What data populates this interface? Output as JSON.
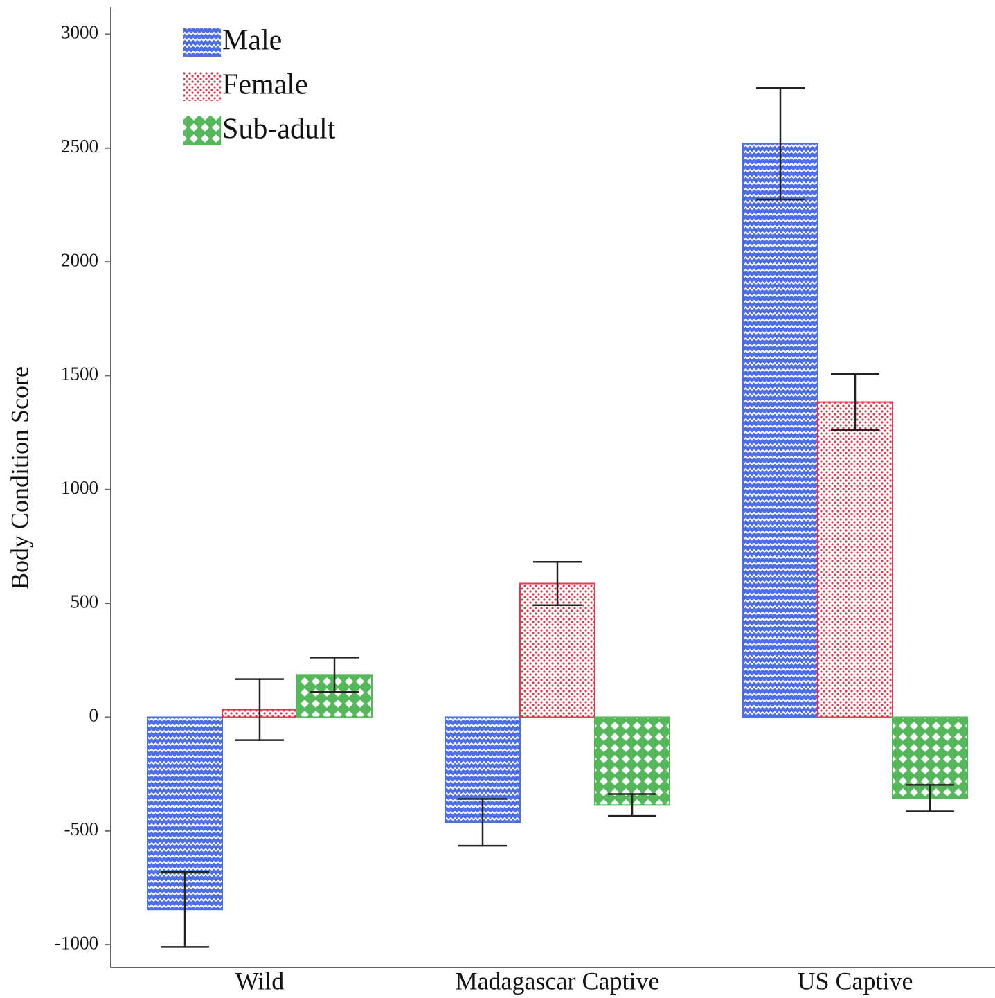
{
  "chart_data": {
    "type": "bar",
    "ylabel": "Body Condition Score",
    "categories": [
      "Wild",
      "Madagascar Captive",
      "US Captive"
    ],
    "series": [
      {
        "name": "Male",
        "color": "#4d6ee8",
        "values": [
          -845,
          -462,
          2519
        ],
        "errors": [
          165,
          103,
          245
        ]
      },
      {
        "name": "Female",
        "color": "#e0384e",
        "values": [
          33,
          587,
          1384
        ],
        "errors": [
          134,
          95,
          123
        ]
      },
      {
        "name": "Sub-adult",
        "color": "#56b85a",
        "values": [
          186,
          -386,
          -356
        ],
        "errors": [
          76,
          48,
          58
        ]
      }
    ],
    "ylim": [
      -1100,
      3120
    ],
    "yticks": [
      -1000,
      -500,
      0,
      500,
      1000,
      1500,
      2000,
      2500,
      3000
    ],
    "legend": "upper left",
    "grid": false
  }
}
